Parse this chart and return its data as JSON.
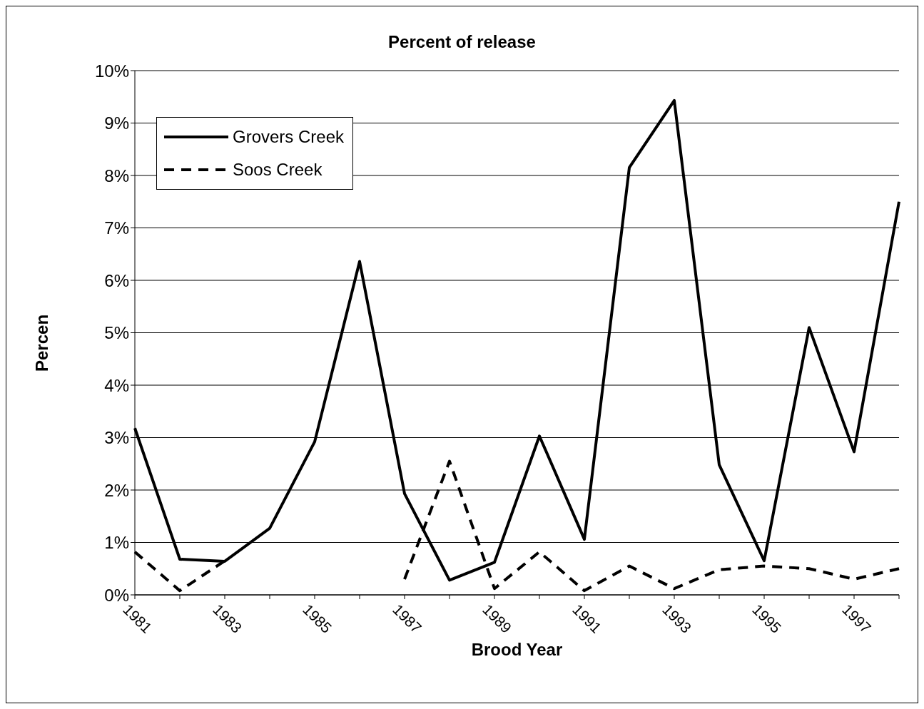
{
  "chart_data": {
    "type": "line",
    "title": "Percent of release",
    "xlabel": "Brood Year",
    "ylabel": "Percen",
    "categories": [
      "1981",
      null,
      "1983",
      null,
      "1985",
      null,
      "1987",
      null,
      "1989",
      null,
      "1991",
      null,
      "1993",
      null,
      "1995",
      null,
      "1997",
      null
    ],
    "series": [
      {
        "name": "Grovers Creek",
        "color": "#000000",
        "line_style": "solid",
        "values": [
          3.18,
          0.68,
          0.64,
          1.27,
          2.92,
          6.36,
          1.93,
          0.28,
          0.62,
          3.03,
          1.06,
          8.15,
          9.43,
          2.48,
          0.65,
          5.1,
          2.73,
          7.5
        ]
      },
      {
        "name": "Soos Creek",
        "color": "#000000",
        "line_style": "dashed",
        "values": [
          0.82,
          0.08,
          0.65,
          null,
          null,
          null,
          0.3,
          2.55,
          0.12,
          0.82,
          0.08,
          0.55,
          0.12,
          0.48,
          0.55,
          0.5,
          0.3,
          0.5
        ]
      }
    ],
    "ylim": [
      0,
      10
    ],
    "yticks": [
      {
        "value": 0,
        "label": "0%"
      },
      {
        "value": 1,
        "label": "1%"
      },
      {
        "value": 2,
        "label": "2%"
      },
      {
        "value": 3,
        "label": "3%"
      },
      {
        "value": 4,
        "label": "4%"
      },
      {
        "value": 5,
        "label": "5%"
      },
      {
        "value": 6,
        "label": "6%"
      },
      {
        "value": 7,
        "label": "7%"
      },
      {
        "value": 8,
        "label": "8%"
      },
      {
        "value": 9,
        "label": "9%"
      },
      {
        "value": 10,
        "label": "10%"
      }
    ],
    "grid": "y",
    "legend": "top left",
    "marker": "none"
  }
}
